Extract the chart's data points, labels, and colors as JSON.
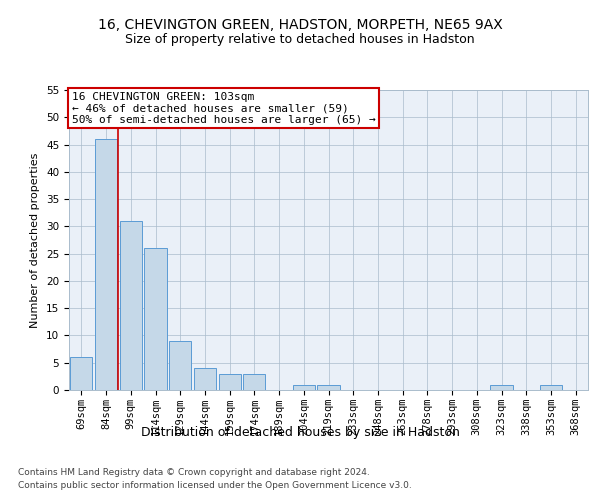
{
  "title1": "16, CHEVINGTON GREEN, HADSTON, MORPETH, NE65 9AX",
  "title2": "Size of property relative to detached houses in Hadston",
  "xlabel": "Distribution of detached houses by size in Hadston",
  "ylabel": "Number of detached properties",
  "categories": [
    "69sqm",
    "84sqm",
    "99sqm",
    "114sqm",
    "129sqm",
    "144sqm",
    "159sqm",
    "174sqm",
    "189sqm",
    "204sqm",
    "219sqm",
    "233sqm",
    "248sqm",
    "263sqm",
    "278sqm",
    "293sqm",
    "308sqm",
    "323sqm",
    "338sqm",
    "353sqm",
    "368sqm"
  ],
  "values": [
    6,
    46,
    31,
    26,
    9,
    4,
    3,
    3,
    0,
    1,
    1,
    0,
    0,
    0,
    0,
    0,
    0,
    1,
    0,
    1,
    0
  ],
  "bar_color": "#c5d8e8",
  "bar_edgecolor": "#5b9bd5",
  "vline_x": 1.5,
  "vline_color": "#cc0000",
  "annotation_text": "16 CHEVINGTON GREEN: 103sqm\n← 46% of detached houses are smaller (59)\n50% of semi-detached houses are larger (65) →",
  "annotation_box_color": "#ffffff",
  "annotation_box_edgecolor": "#cc0000",
  "ylim": [
    0,
    55
  ],
  "yticks": [
    0,
    5,
    10,
    15,
    20,
    25,
    30,
    35,
    40,
    45,
    50,
    55
  ],
  "plot_bg_color": "#eaf0f8",
  "footer1": "Contains HM Land Registry data © Crown copyright and database right 2024.",
  "footer2": "Contains public sector information licensed under the Open Government Licence v3.0.",
  "title1_fontsize": 10,
  "title2_fontsize": 9,
  "xlabel_fontsize": 9,
  "ylabel_fontsize": 8,
  "tick_fontsize": 7.5,
  "annotation_fontsize": 8,
  "footer_fontsize": 6.5
}
